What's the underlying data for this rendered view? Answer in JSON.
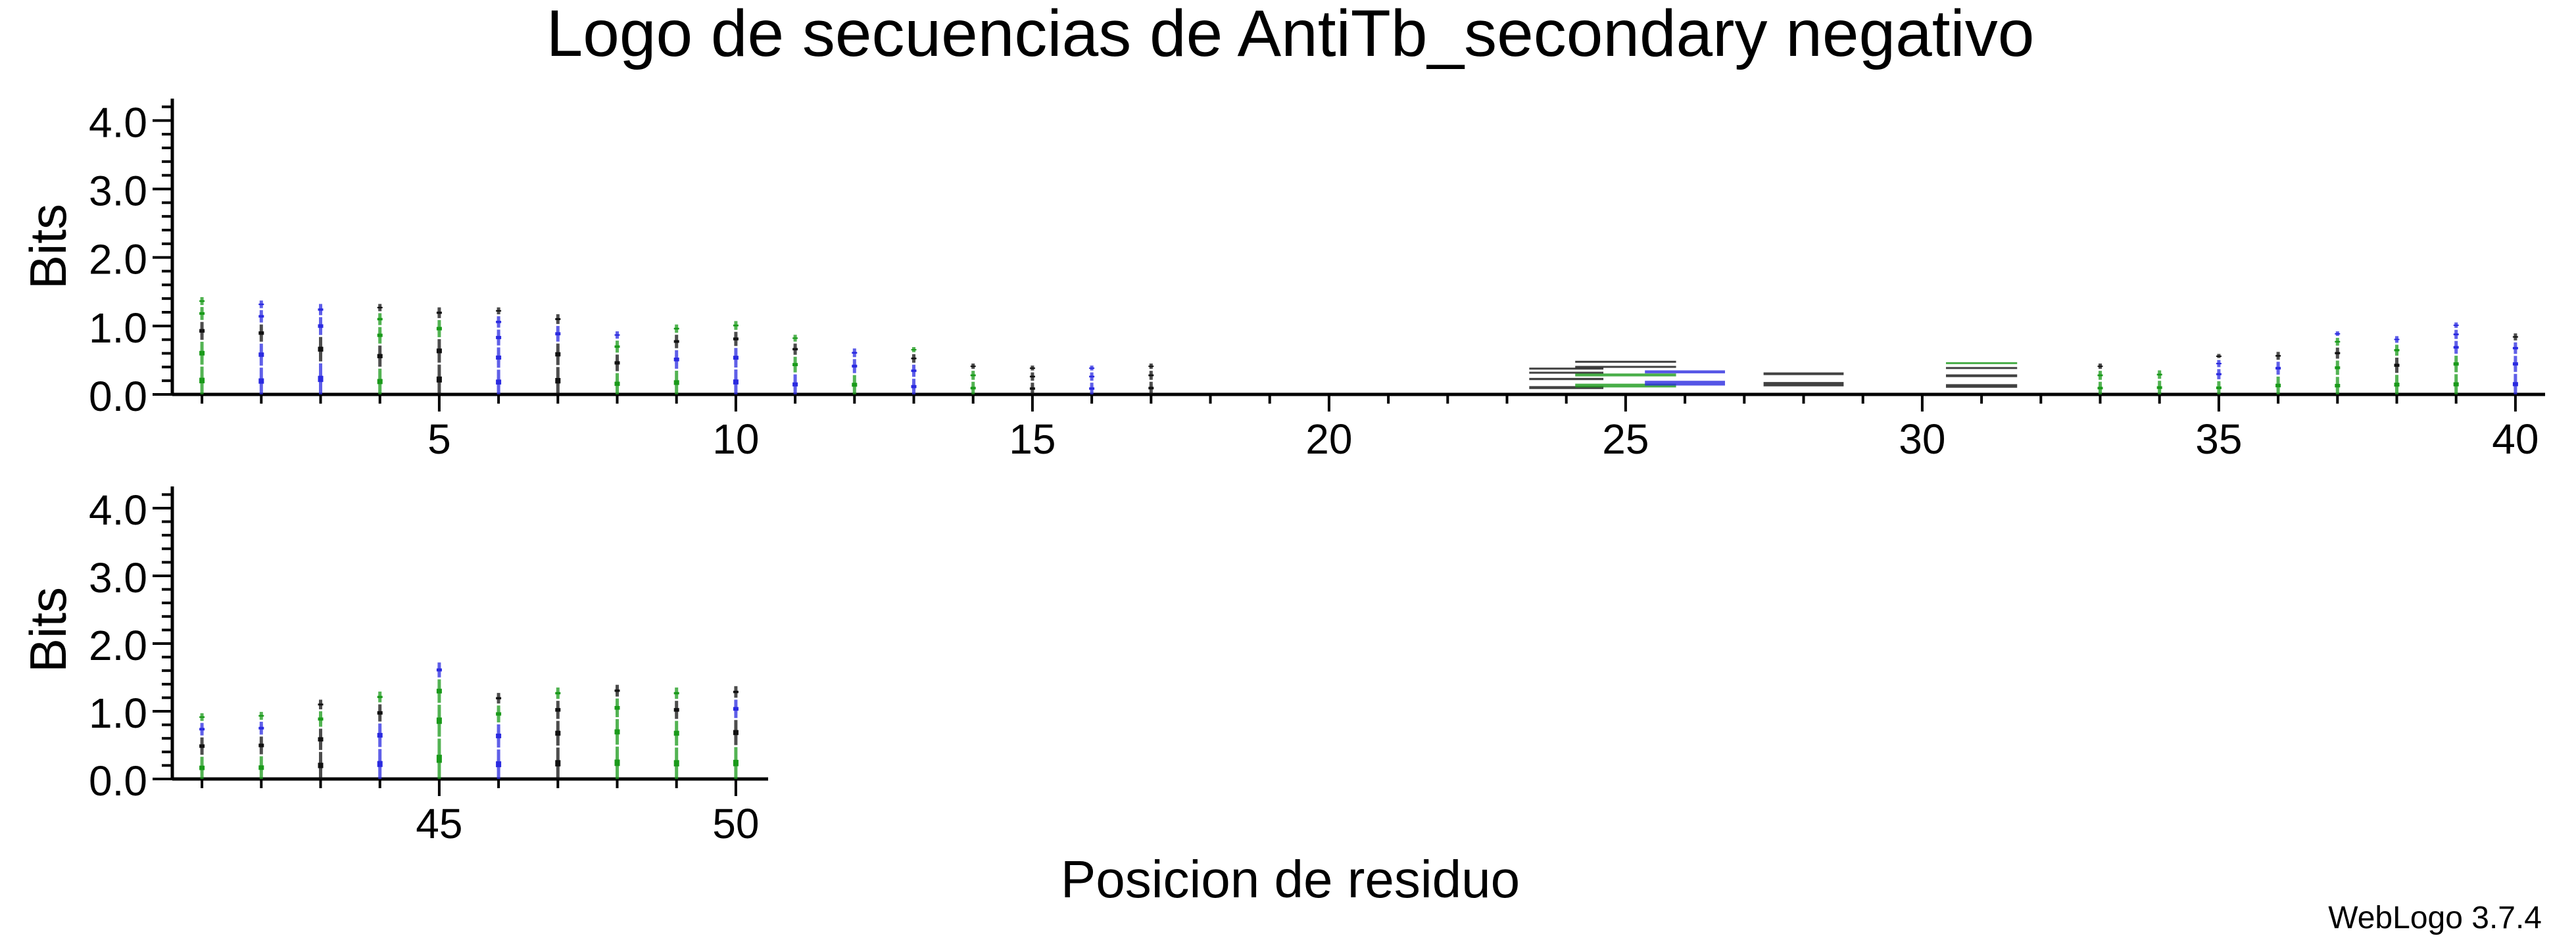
{
  "chart_data": {
    "type": "sequence-logo",
    "title": "Logo de secuencias de AntiTb_secondary negativo",
    "xlabel": "Posicion de residuo",
    "ylabel": "Bits",
    "ylim": [
      0,
      4.32
    ],
    "yticks": [
      "0.0",
      "1.0",
      "2.0",
      "3.0",
      "4.0"
    ],
    "credit": "WebLogo 3.7.4",
    "colors": {
      "green": "#1a9a1a",
      "blue": "#2a2ae0",
      "black": "#111111"
    },
    "panels": [
      {
        "positions": [
          1,
          40
        ],
        "xticks": [
          5,
          10,
          15,
          20,
          25,
          30,
          35,
          40
        ]
      },
      {
        "positions": [
          41,
          50
        ],
        "xticks": [
          45,
          50
        ]
      }
    ],
    "series": [
      {
        "pos": 1,
        "height": 1.45,
        "colors": [
          "green",
          "green",
          "black",
          "green",
          "green"
        ]
      },
      {
        "pos": 2,
        "height": 1.4,
        "colors": [
          "blue",
          "blue",
          "black",
          "blue",
          "blue"
        ]
      },
      {
        "pos": 3,
        "height": 1.35,
        "colors": [
          "blue",
          "black",
          "blue",
          "blue"
        ]
      },
      {
        "pos": 4,
        "height": 1.35,
        "colors": [
          "green",
          "black",
          "green",
          "green",
          "black"
        ]
      },
      {
        "pos": 5,
        "height": 1.3,
        "colors": [
          "black",
          "black",
          "green",
          "black"
        ]
      },
      {
        "pos": 6,
        "height": 1.3,
        "colors": [
          "blue",
          "blue",
          "blue",
          "blue",
          "black"
        ]
      },
      {
        "pos": 7,
        "height": 1.2,
        "colors": [
          "black",
          "black",
          "blue",
          "black"
        ]
      },
      {
        "pos": 8,
        "height": 0.95,
        "colors": [
          "green",
          "black",
          "green",
          "blue"
        ]
      },
      {
        "pos": 9,
        "height": 1.05,
        "colors": [
          "green",
          "blue",
          "black",
          "green"
        ]
      },
      {
        "pos": 10,
        "height": 1.1,
        "colors": [
          "blue",
          "blue",
          "black",
          "green"
        ]
      },
      {
        "pos": 11,
        "height": 0.9,
        "colors": [
          "blue",
          "green",
          "black",
          "green"
        ]
      },
      {
        "pos": 12,
        "height": 0.7,
        "colors": [
          "green",
          "blue",
          "blue"
        ]
      },
      {
        "pos": 13,
        "height": 0.72,
        "colors": [
          "blue",
          "blue",
          "black",
          "green"
        ]
      },
      {
        "pos": 14,
        "height": 0.48,
        "colors": [
          "green",
          "green",
          "black"
        ]
      },
      {
        "pos": 15,
        "height": 0.45,
        "colors": [
          "black",
          "black",
          "black"
        ]
      },
      {
        "pos": 16,
        "height": 0.45,
        "colors": [
          "blue",
          "blue",
          "blue"
        ]
      },
      {
        "pos": 17,
        "height": 0.48,
        "colors": [
          "black",
          "black",
          "black"
        ]
      },
      {
        "pos": 24,
        "height": 0.42,
        "colors": [
          "black",
          "black",
          "black",
          "black"
        ],
        "width": 1.25
      },
      {
        "pos": 25,
        "height": 0.52,
        "colors": [
          "green",
          "green",
          "black",
          "black"
        ],
        "width": 1.7
      },
      {
        "pos": 26,
        "height": 0.38,
        "colors": [
          "blue",
          "blue"
        ],
        "width": 1.35
      },
      {
        "pos": 28,
        "height": 0.35,
        "colors": [
          "black",
          "black"
        ],
        "width": 1.35
      },
      {
        "pos": 31,
        "height": 0.5,
        "colors": [
          "black",
          "black",
          "black",
          "green"
        ],
        "width": 1.2
      },
      {
        "pos": 33,
        "height": 0.48,
        "colors": [
          "green",
          "green",
          "black"
        ]
      },
      {
        "pos": 34,
        "height": 0.38,
        "colors": [
          "green",
          "green"
        ]
      },
      {
        "pos": 35,
        "height": 0.62,
        "colors": [
          "green",
          "blue",
          "blue",
          "black"
        ]
      },
      {
        "pos": 36,
        "height": 0.65,
        "colors": [
          "green",
          "blue",
          "black"
        ]
      },
      {
        "pos": 37,
        "height": 0.95,
        "colors": [
          "green",
          "green",
          "black",
          "green",
          "blue"
        ]
      },
      {
        "pos": 38,
        "height": 0.88,
        "colors": [
          "green",
          "black",
          "green",
          "blue"
        ]
      },
      {
        "pos": 39,
        "height": 1.08,
        "colors": [
          "green",
          "green",
          "blue",
          "blue",
          "blue"
        ]
      },
      {
        "pos": 40,
        "height": 0.92,
        "colors": [
          "blue",
          "blue",
          "blue",
          "black"
        ]
      },
      {
        "pos": 41,
        "height": 1.0,
        "colors": [
          "green",
          "black",
          "blue",
          "green"
        ]
      },
      {
        "pos": 42,
        "height": 1.02,
        "colors": [
          "green",
          "black",
          "blue",
          "green"
        ]
      },
      {
        "pos": 43,
        "height": 1.2,
        "colors": [
          "black",
          "black",
          "green",
          "black"
        ]
      },
      {
        "pos": 44,
        "height": 1.32,
        "colors": [
          "blue",
          "blue",
          "black",
          "green"
        ]
      },
      {
        "pos": 45,
        "height": 1.75,
        "colors": [
          "green",
          "green",
          "green",
          "blue"
        ]
      },
      {
        "pos": 46,
        "height": 1.3,
        "colors": [
          "blue",
          "blue",
          "green",
          "black"
        ]
      },
      {
        "pos": 47,
        "height": 1.38,
        "colors": [
          "black",
          "black",
          "black",
          "green"
        ]
      },
      {
        "pos": 48,
        "height": 1.42,
        "colors": [
          "green",
          "green",
          "green",
          "black"
        ]
      },
      {
        "pos": 49,
        "height": 1.38,
        "colors": [
          "green",
          "green",
          "black",
          "green"
        ]
      },
      {
        "pos": 50,
        "height": 1.4,
        "colors": [
          "green",
          "black",
          "blue",
          "black"
        ]
      }
    ]
  }
}
